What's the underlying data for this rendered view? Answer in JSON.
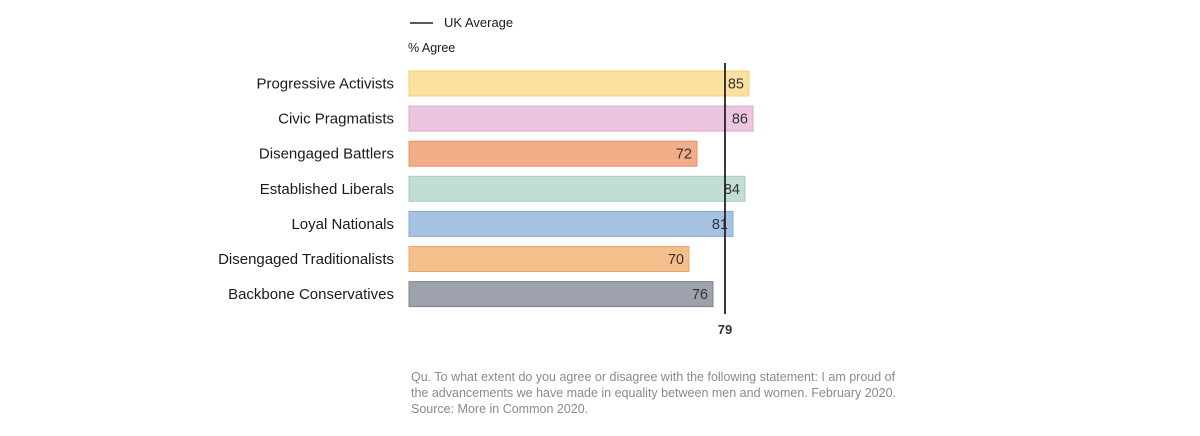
{
  "chart_data": {
    "type": "bar",
    "orientation": "horizontal",
    "unit_label": "% Agree",
    "categories": [
      "Progressive Activists",
      "Civic Pragmatists",
      "Disengaged Battlers",
      "Established Liberals",
      "Loyal Nationals",
      "Disengaged Traditionalists",
      "Backbone Conservatives"
    ],
    "values": [
      85,
      86,
      72,
      84,
      81,
      70,
      76
    ],
    "colors": [
      "#fbe0a0",
      "#ecc6e0",
      "#f1ac88",
      "#c2ddd2",
      "#a6c2e2",
      "#f3c08d",
      "#9da1ac"
    ],
    "border_colors": [
      "#f5cf73",
      "#dfa6cc",
      "#e79068",
      "#a7cbbd",
      "#86a9d3",
      "#eba56a",
      "#7d828e"
    ],
    "reference_line": {
      "label": "UK Average",
      "value": 79,
      "value_label": "79"
    },
    "xlim": [
      0,
      100
    ],
    "grid": false
  },
  "footnote": {
    "lines": [
      "Qu. To what extent do you agree or disagree with the following statement: I am proud of",
      "the advancements we have made in equality between men and women. February 2020.",
      "Source: More in Common 2020."
    ]
  }
}
